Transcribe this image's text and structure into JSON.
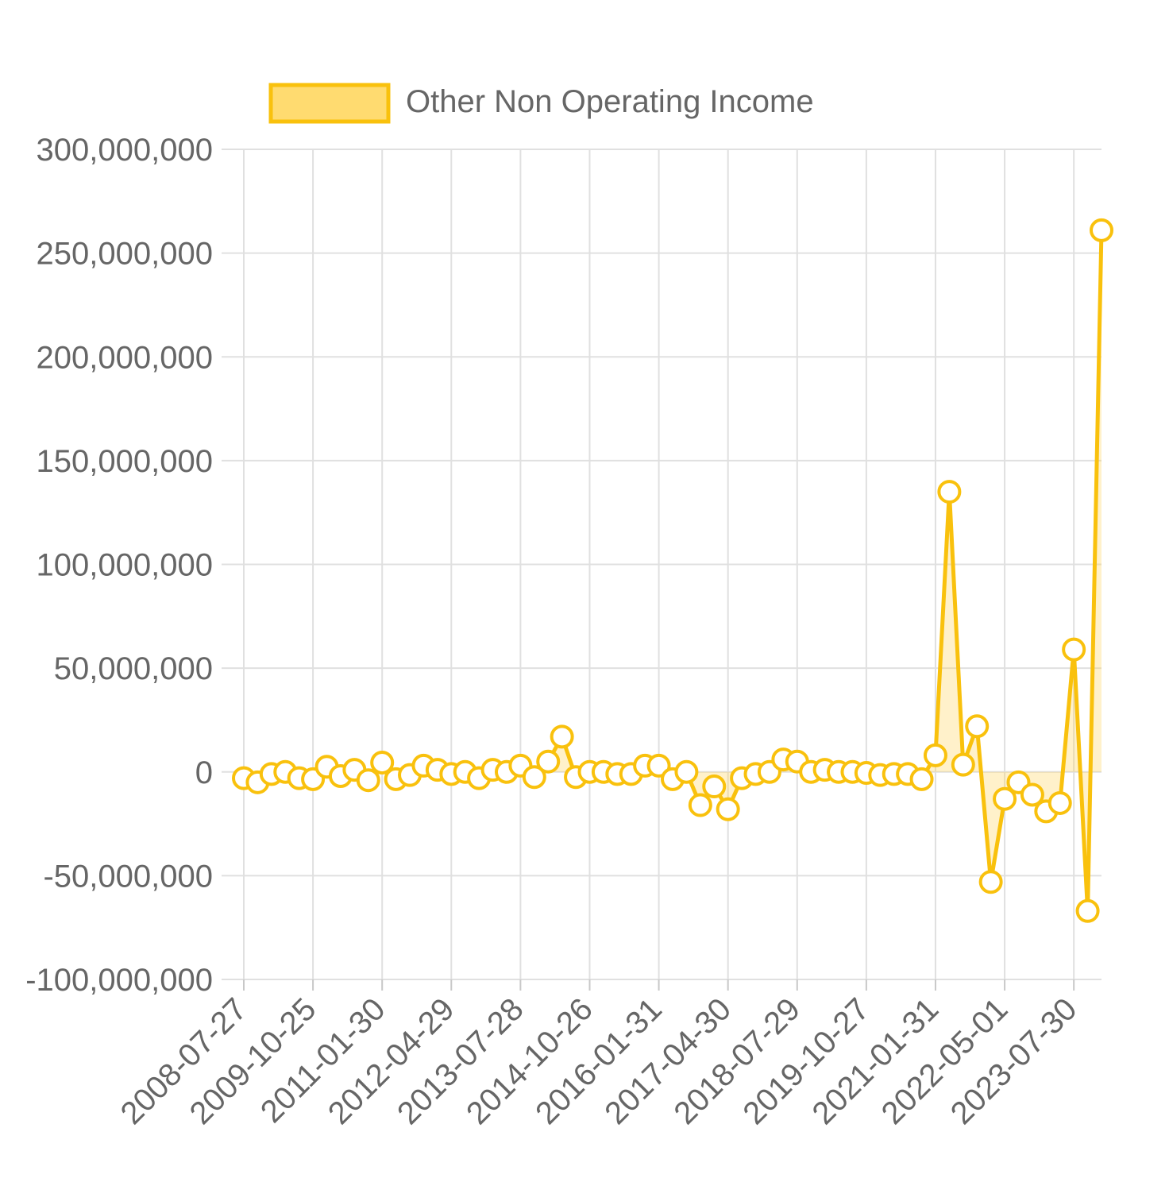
{
  "chart_data": {
    "type": "area",
    "series": [
      {
        "name": "Other Non Operating Income",
        "color": "#f9c10d",
        "fill": "rgba(255,210,80,0.30)",
        "values": [
          -3000000,
          -5000000,
          -1000000,
          0,
          -3000000,
          -3500000,
          2500000,
          -2000000,
          1000000,
          -4000000,
          4500000,
          -3500000,
          -1500000,
          3000000,
          1000000,
          -1000000,
          0,
          -3000000,
          1000000,
          0,
          3000000,
          -2500000,
          5000000,
          17000000,
          -2500000,
          0,
          0,
          -1000000,
          -1000000,
          3000000,
          3000000,
          -3500000,
          0,
          -16000000,
          -7000000,
          -18000000,
          -3000000,
          -1000000,
          0,
          6000000,
          5000000,
          0,
          1000000,
          0,
          0,
          -500000,
          -1500000,
          -1000000,
          -1000000,
          -3500000,
          8000000,
          135000000,
          3500000,
          22000000,
          -53000000,
          -13000000,
          -5000000,
          -11000000,
          -19000000,
          -15000000,
          59000000,
          -67000000,
          261000000
        ]
      }
    ],
    "x_tick_labels": [
      "2008-07-27",
      "2009-10-25",
      "2011-01-30",
      "2012-04-29",
      "2013-07-28",
      "2014-10-26",
      "2016-01-31",
      "2017-04-30",
      "2018-07-29",
      "2019-10-27",
      "2021-01-31",
      "2022-05-01",
      "2023-07-30"
    ],
    "x_tick_every": 5,
    "y_ticks": [
      "300,000,000",
      "250,000,000",
      "200,000,000",
      "150,000,000",
      "100,000,000",
      "50,000,000",
      "0",
      "-50,000,000",
      "-100,000,000"
    ],
    "ylim": [
      -100000000,
      300000000
    ],
    "xlabel": "",
    "ylabel": "",
    "grid": true,
    "legend": {
      "position": "top",
      "label": "Other Non Operating Income"
    }
  }
}
